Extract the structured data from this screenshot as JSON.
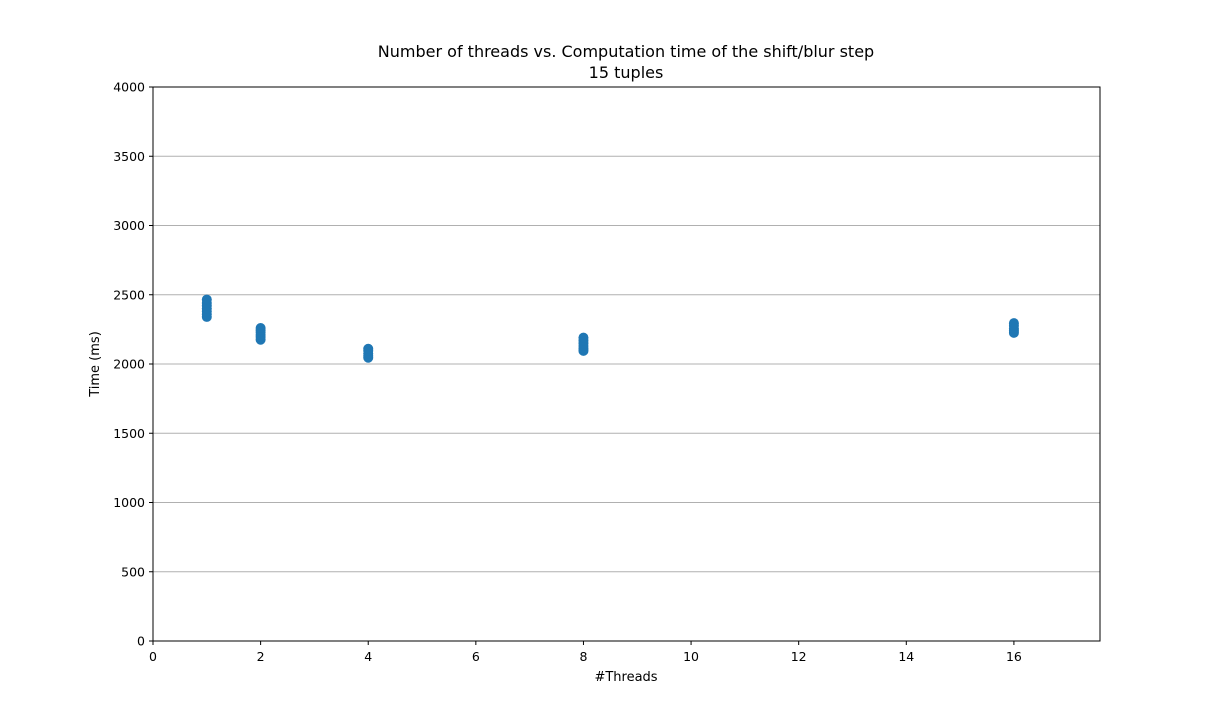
{
  "chart_data": {
    "type": "scatter",
    "title": "Number of threads vs. Computation time of the shift/blur step",
    "subtitle": "15 tuples",
    "xlabel": "#Threads",
    "ylabel": "Time (ms)",
    "xlim": [
      0,
      17.6
    ],
    "ylim": [
      0,
      4000
    ],
    "xticks": [
      0,
      2,
      4,
      6,
      8,
      10,
      12,
      14,
      16
    ],
    "yticks": [
      0,
      500,
      1000,
      1500,
      2000,
      2500,
      3000,
      3500,
      4000
    ],
    "grid": "horizontal",
    "marker_color": "#1f77b4",
    "points": [
      {
        "x": 1,
        "y": 2340
      },
      {
        "x": 1,
        "y": 2360
      },
      {
        "x": 1,
        "y": 2380
      },
      {
        "x": 1,
        "y": 2400
      },
      {
        "x": 1,
        "y": 2420
      },
      {
        "x": 1,
        "y": 2440
      },
      {
        "x": 1,
        "y": 2465
      },
      {
        "x": 2,
        "y": 2175
      },
      {
        "x": 2,
        "y": 2195
      },
      {
        "x": 2,
        "y": 2210
      },
      {
        "x": 2,
        "y": 2230
      },
      {
        "x": 2,
        "y": 2245
      },
      {
        "x": 2,
        "y": 2260
      },
      {
        "x": 4,
        "y": 2045
      },
      {
        "x": 4,
        "y": 2060
      },
      {
        "x": 4,
        "y": 2075
      },
      {
        "x": 4,
        "y": 2095
      },
      {
        "x": 4,
        "y": 2110
      },
      {
        "x": 8,
        "y": 2095
      },
      {
        "x": 8,
        "y": 2110
      },
      {
        "x": 8,
        "y": 2130
      },
      {
        "x": 8,
        "y": 2150
      },
      {
        "x": 8,
        "y": 2170
      },
      {
        "x": 8,
        "y": 2190
      },
      {
        "x": 16,
        "y": 2225
      },
      {
        "x": 16,
        "y": 2240
      },
      {
        "x": 16,
        "y": 2255
      },
      {
        "x": 16,
        "y": 2275
      },
      {
        "x": 16,
        "y": 2295
      }
    ]
  }
}
